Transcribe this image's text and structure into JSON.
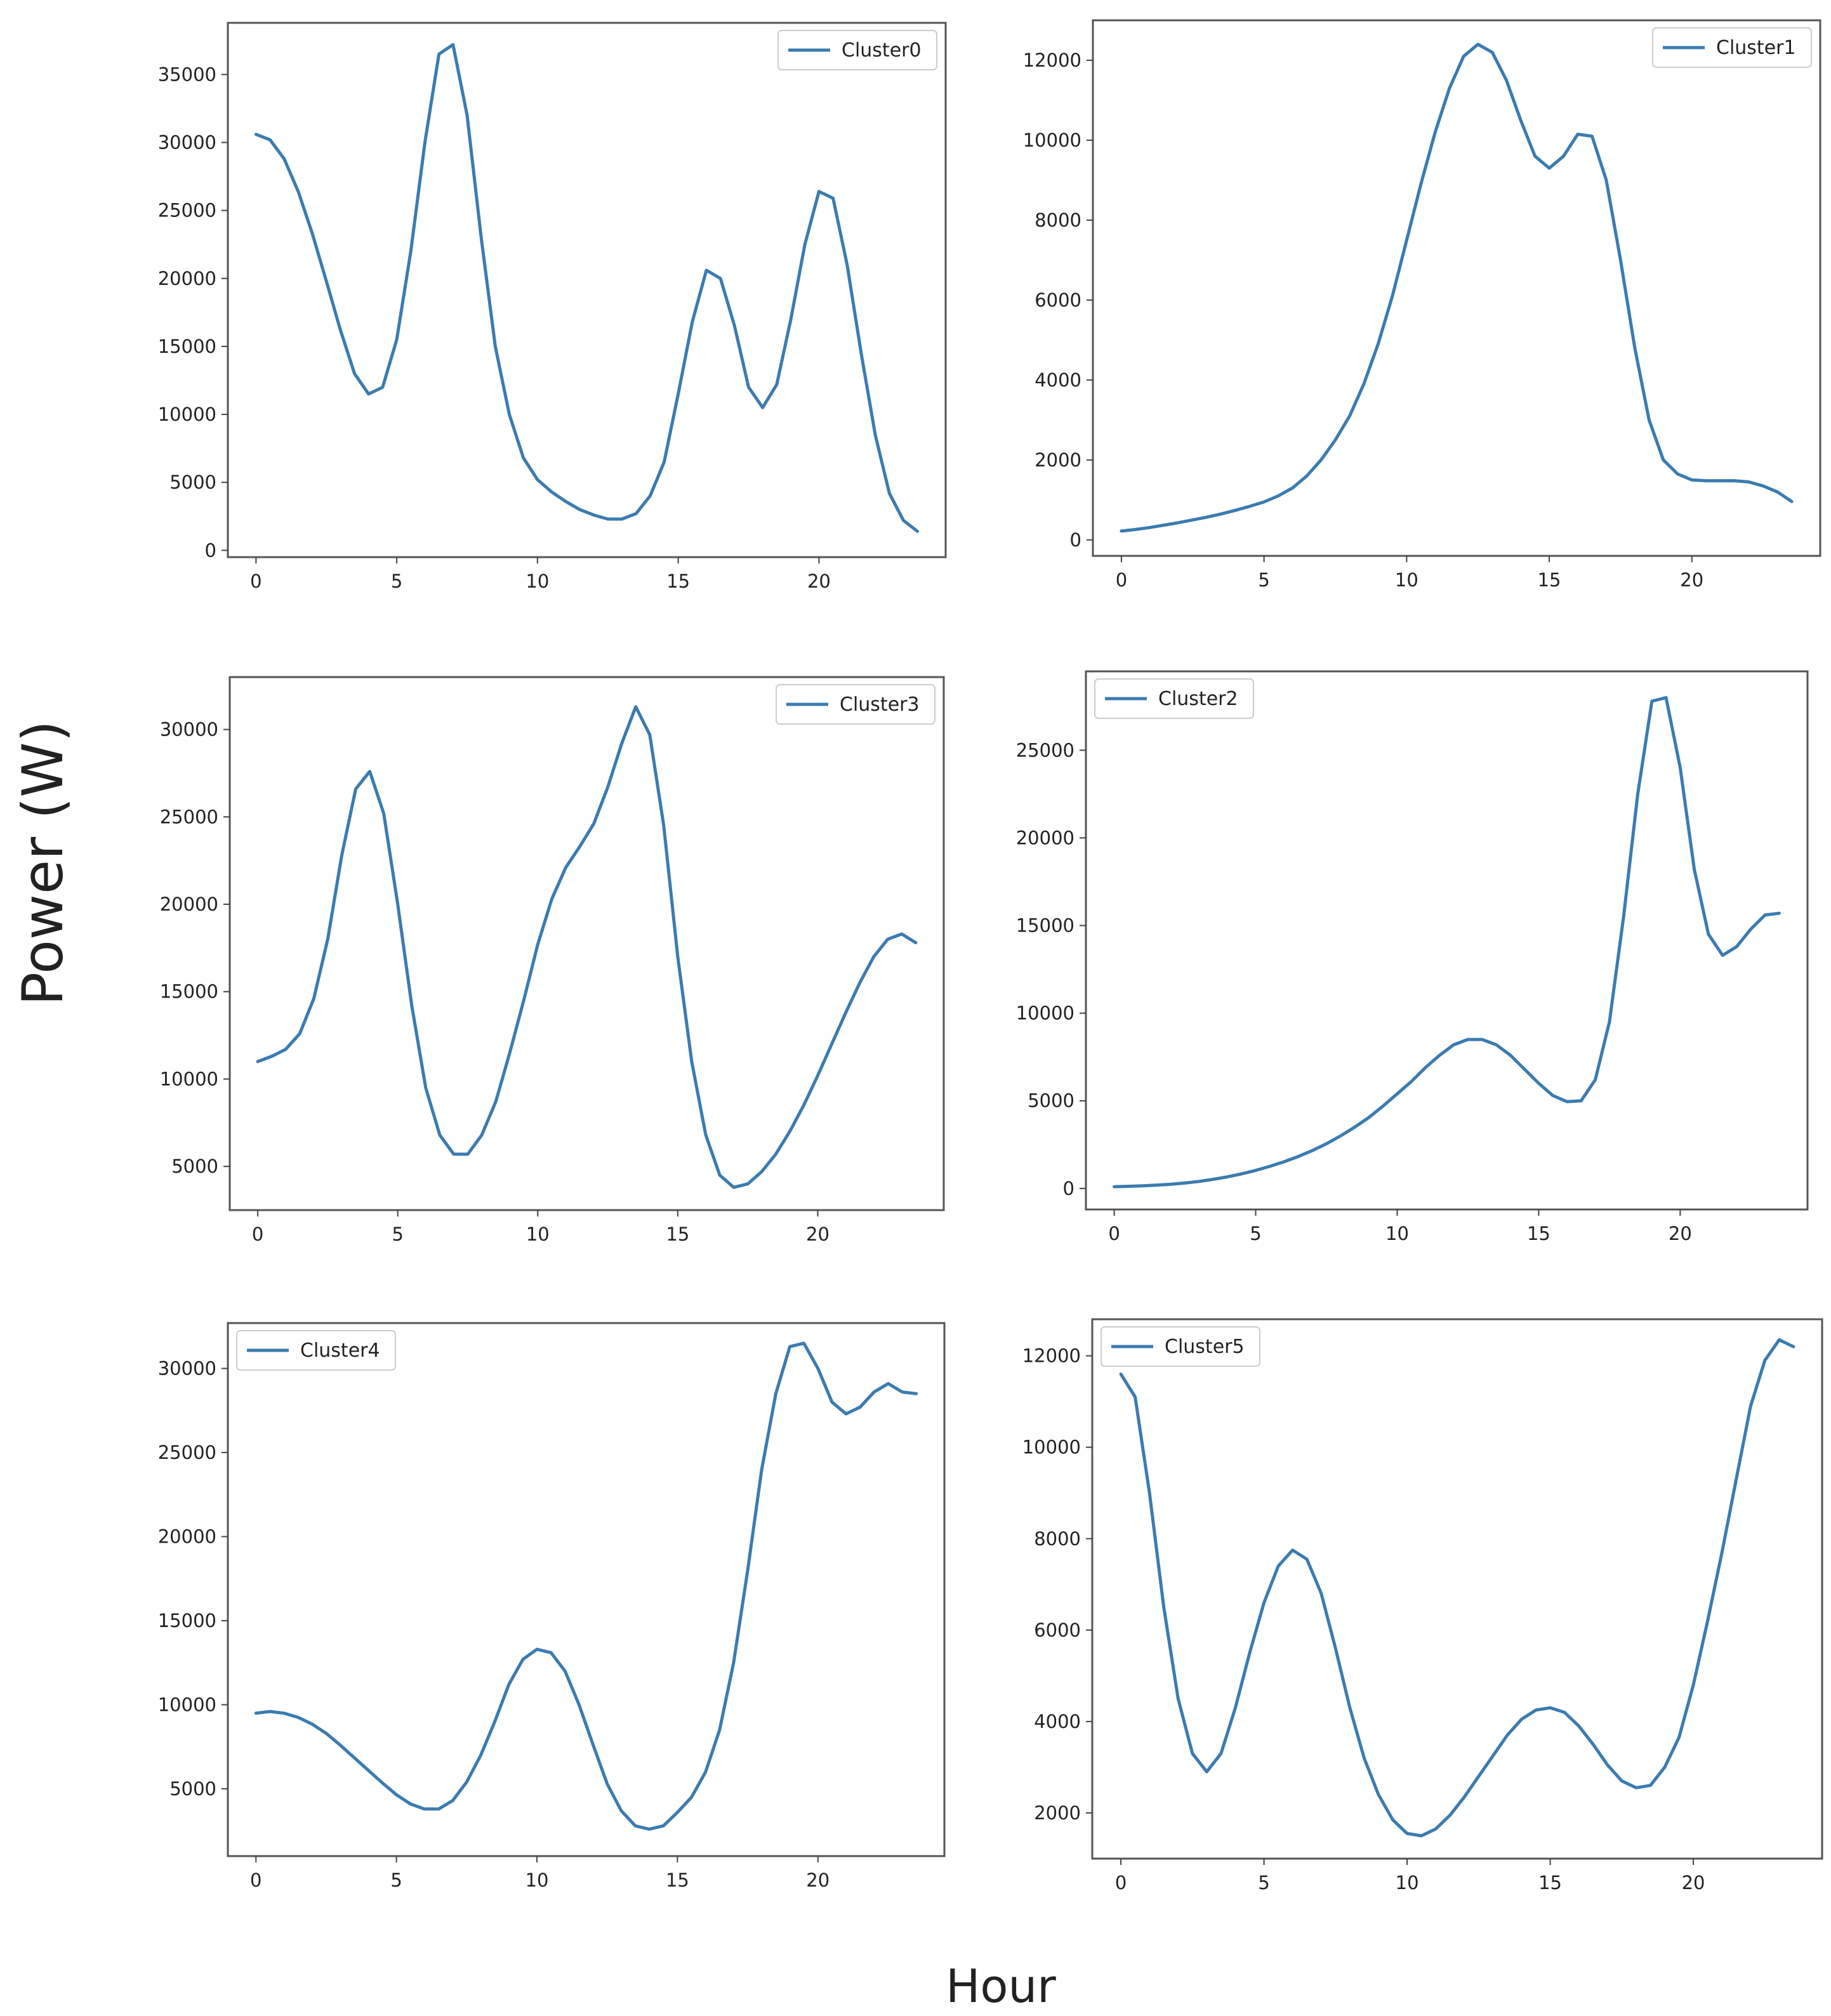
{
  "figure": {
    "ylabel": "Power (W)",
    "xlabel": "Hour"
  },
  "chart_data": [
    {
      "type": "line",
      "legend": "Cluster0",
      "legend_position": "top-right",
      "color": "#3b7bb0",
      "xlim": [
        -1,
        24.5
      ],
      "ylim": [
        -500,
        38800
      ],
      "xticks": [
        0,
        5,
        10,
        15,
        20
      ],
      "yticks": [
        0,
        5000,
        10000,
        15000,
        20000,
        25000,
        30000,
        35000
      ],
      "x": [
        0,
        0.5,
        1,
        1.5,
        2,
        2.5,
        3,
        3.5,
        4,
        4.5,
        5,
        5.5,
        6,
        6.5,
        7,
        7.5,
        8,
        8.5,
        9,
        9.5,
        10,
        10.5,
        11,
        11.5,
        12,
        12.5,
        13,
        13.5,
        14,
        14.5,
        15,
        15.5,
        16,
        16.5,
        17,
        17.5,
        18,
        18.5,
        19,
        19.5,
        20,
        20.5,
        21,
        21.5,
        22,
        22.5,
        23,
        23.5
      ],
      "y": [
        30600,
        30200,
        28800,
        26400,
        23300,
        19800,
        16200,
        13000,
        11500,
        12000,
        15500,
        22000,
        30000,
        36500,
        37200,
        32000,
        23000,
        15000,
        10000,
        6800,
        5200,
        4300,
        3600,
        3000,
        2600,
        2300,
        2300,
        2700,
        4000,
        6500,
        11500,
        16800,
        20600,
        20000,
        16500,
        12000,
        10500,
        12200,
        17000,
        22500,
        26400,
        25900,
        21000,
        14500,
        8500,
        4200,
        2200,
        1400
      ]
    },
    {
      "type": "line",
      "legend": "Cluster1",
      "legend_position": "top-right",
      "color": "#3b7bb0",
      "xlim": [
        -1,
        24.5
      ],
      "ylim": [
        -400,
        13000
      ],
      "xticks": [
        0,
        5,
        10,
        15,
        20
      ],
      "yticks": [
        0,
        2000,
        4000,
        6000,
        8000,
        10000,
        12000
      ],
      "x": [
        0,
        0.5,
        1,
        1.5,
        2,
        2.5,
        3,
        3.5,
        4,
        4.5,
        5,
        5.5,
        6,
        6.5,
        7,
        7.5,
        8,
        8.5,
        9,
        9.5,
        10,
        10.5,
        11,
        11.5,
        12,
        12.5,
        13,
        13.5,
        14,
        14.5,
        15,
        15.5,
        16,
        16.5,
        17,
        17.5,
        18,
        18.5,
        19,
        19.5,
        20,
        20.5,
        21,
        21.5,
        22,
        22.5,
        23,
        23.5
      ],
      "y": [
        220,
        260,
        310,
        370,
        430,
        500,
        570,
        650,
        740,
        840,
        950,
        1100,
        1300,
        1600,
        2000,
        2500,
        3100,
        3900,
        4900,
        6100,
        7500,
        8900,
        10200,
        11300,
        12100,
        12400,
        12200,
        11500,
        10500,
        9600,
        9300,
        9600,
        10150,
        10100,
        9000,
        7000,
        4800,
        3000,
        2000,
        1650,
        1500,
        1480,
        1480,
        1480,
        1450,
        1350,
        1200,
        960
      ]
    },
    {
      "type": "line",
      "legend": "Cluster3",
      "legend_position": "top-right",
      "color": "#3b7bb0",
      "xlim": [
        -1,
        24.5
      ],
      "ylim": [
        2500,
        33000
      ],
      "xticks": [
        0,
        5,
        10,
        15,
        20
      ],
      "yticks": [
        5000,
        10000,
        15000,
        20000,
        25000,
        30000
      ],
      "x": [
        0,
        0.5,
        1,
        1.5,
        2,
        2.5,
        3,
        3.5,
        4,
        4.5,
        5,
        5.5,
        6,
        6.5,
        7,
        7.5,
        8,
        8.5,
        9,
        9.5,
        10,
        10.5,
        11,
        11.5,
        12,
        12.5,
        13,
        13.5,
        14,
        14.5,
        15,
        15.5,
        16,
        16.5,
        17,
        17.5,
        18,
        18.5,
        19,
        19.5,
        20,
        20.5,
        21,
        21.5,
        22,
        22.5,
        23,
        23.5
      ],
      "y": [
        11000,
        11300,
        11700,
        12600,
        14600,
        18000,
        22800,
        26600,
        27600,
        25200,
        20000,
        14200,
        9500,
        6800,
        5700,
        5700,
        6800,
        8700,
        11500,
        14500,
        17700,
        20300,
        22100,
        23300,
        24600,
        26700,
        29200,
        31300,
        29700,
        24500,
        17000,
        11000,
        6800,
        4500,
        3800,
        4000,
        4700,
        5700,
        7000,
        8500,
        10200,
        12000,
        13800,
        15500,
        17000,
        18000,
        18300,
        17800
      ]
    },
    {
      "type": "line",
      "legend": "Cluster2",
      "legend_position": "top-left",
      "color": "#3b7bb0",
      "xlim": [
        -1,
        24.5
      ],
      "ylim": [
        -1200,
        29500
      ],
      "xticks": [
        0,
        5,
        10,
        15,
        20
      ],
      "yticks": [
        0,
        5000,
        10000,
        15000,
        20000,
        25000
      ],
      "x": [
        0,
        0.5,
        1,
        1.5,
        2,
        2.5,
        3,
        3.5,
        4,
        4.5,
        5,
        5.5,
        6,
        6.5,
        7,
        7.5,
        8,
        8.5,
        9,
        9.5,
        10,
        10.5,
        11,
        11.5,
        12,
        12.5,
        13,
        13.5,
        14,
        14.5,
        15,
        15.5,
        16,
        16.5,
        17,
        17.5,
        18,
        18.5,
        19,
        19.5,
        20,
        20.5,
        21,
        21.5,
        22,
        22.5,
        23,
        23.5
      ],
      "y": [
        100,
        120,
        150,
        190,
        240,
        310,
        400,
        520,
        660,
        830,
        1030,
        1260,
        1520,
        1820,
        2160,
        2550,
        3000,
        3500,
        4050,
        4700,
        5400,
        6100,
        6900,
        7600,
        8200,
        8500,
        8500,
        8200,
        7600,
        6800,
        6000,
        5300,
        4950,
        5000,
        6200,
        9500,
        15500,
        22500,
        27800,
        28000,
        24000,
        18200,
        14500,
        13300,
        13800,
        14800,
        15600,
        15700
      ]
    },
    {
      "type": "line",
      "legend": "Cluster4",
      "legend_position": "top-left",
      "color": "#3b7bb0",
      "xlim": [
        -1,
        24.5
      ],
      "ylim": [
        1000,
        32700
      ],
      "xticks": [
        0,
        5,
        10,
        15,
        20
      ],
      "yticks": [
        5000,
        10000,
        15000,
        20000,
        25000,
        30000
      ],
      "x": [
        0,
        0.5,
        1,
        1.5,
        2,
        2.5,
        3,
        3.5,
        4,
        4.5,
        5,
        5.5,
        6,
        6.5,
        7,
        7.5,
        8,
        8.5,
        9,
        9.5,
        10,
        10.5,
        11,
        11.5,
        12,
        12.5,
        13,
        13.5,
        14,
        14.5,
        15,
        15.5,
        16,
        16.5,
        17,
        17.5,
        18,
        18.5,
        19,
        19.5,
        20,
        20.5,
        21,
        21.5,
        22,
        22.5,
        23,
        23.5
      ],
      "y": [
        9500,
        9600,
        9500,
        9250,
        8850,
        8300,
        7600,
        6850,
        6100,
        5350,
        4650,
        4100,
        3800,
        3800,
        4300,
        5400,
        7000,
        9000,
        11200,
        12700,
        13300,
        13100,
        12000,
        10000,
        7600,
        5300,
        3700,
        2800,
        2600,
        2800,
        3600,
        4500,
        6000,
        8500,
        12500,
        18000,
        24000,
        28500,
        31300,
        31500,
        30000,
        28000,
        27300,
        27700,
        28600,
        29100,
        28600,
        28500
      ]
    },
    {
      "type": "line",
      "legend": "Cluster5",
      "legend_position": "top-left",
      "color": "#3b7bb0",
      "xlim": [
        -1,
        24.5
      ],
      "ylim": [
        1000,
        12800
      ],
      "xticks": [
        0,
        5,
        10,
        15,
        20
      ],
      "yticks": [
        2000,
        4000,
        6000,
        8000,
        10000,
        12000
      ],
      "x": [
        0,
        0.5,
        1,
        1.5,
        2,
        2.5,
        3,
        3.5,
        4,
        4.5,
        5,
        5.5,
        6,
        6.5,
        7,
        7.5,
        8,
        8.5,
        9,
        9.5,
        10,
        10.5,
        11,
        11.5,
        12,
        12.5,
        13,
        13.5,
        14,
        14.5,
        15,
        15.5,
        16,
        16.5,
        17,
        17.5,
        18,
        18.5,
        19,
        19.5,
        20,
        20.5,
        21,
        21.5,
        22,
        22.5,
        23,
        23.5
      ],
      "y": [
        11600,
        11100,
        9000,
        6500,
        4500,
        3300,
        2900,
        3300,
        4300,
        5500,
        6600,
        7400,
        7750,
        7550,
        6800,
        5600,
        4300,
        3200,
        2400,
        1850,
        1550,
        1500,
        1650,
        1950,
        2350,
        2800,
        3250,
        3700,
        4050,
        4250,
        4300,
        4200,
        3900,
        3500,
        3050,
        2700,
        2550,
        2600,
        3000,
        3650,
        4800,
        6200,
        7700,
        9300,
        10900,
        11900,
        12350,
        12200
      ]
    }
  ]
}
